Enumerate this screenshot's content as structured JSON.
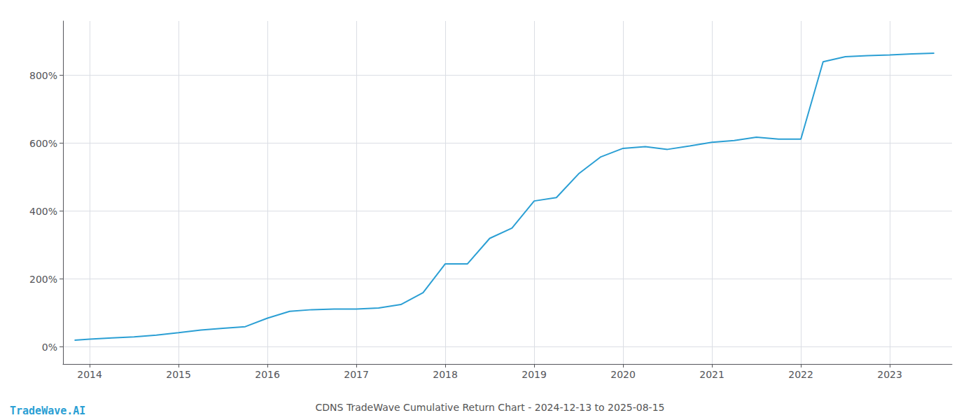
{
  "chart_data": {
    "type": "line",
    "title": "CDNS TradeWave Cumulative Return Chart - 2024-12-13 to 2025-08-15",
    "annotations": [
      {
        "text": "TradeWave.AI",
        "color": "#2b9fd4"
      }
    ],
    "x": [
      2013.83,
      2014.0,
      2014.25,
      2014.5,
      2014.75,
      2015.0,
      2015.25,
      2015.5,
      2015.75,
      2016.0,
      2016.25,
      2016.5,
      2016.75,
      2017.0,
      2017.25,
      2017.5,
      2017.75,
      2018.0,
      2018.25,
      2018.5,
      2018.75,
      2019.0,
      2019.25,
      2019.5,
      2019.75,
      2020.0,
      2020.25,
      2020.5,
      2020.75,
      2021.0,
      2021.25,
      2021.5,
      2021.75,
      2022.0,
      2022.25,
      2022.5,
      2022.75,
      2023.0,
      2023.25,
      2023.5
    ],
    "values": [
      20,
      23,
      27,
      30,
      35,
      42,
      50,
      55,
      60,
      85,
      105,
      110,
      112,
      112,
      115,
      125,
      160,
      245,
      245,
      320,
      350,
      430,
      440,
      510,
      560,
      585,
      590,
      582,
      592,
      603,
      608,
      618,
      612,
      612,
      840,
      855,
      858,
      860,
      863,
      865
    ],
    "color": "#2b9fd4",
    "xlim": [
      2013.7,
      2023.7
    ],
    "xticks": [
      2014,
      2015,
      2016,
      2017,
      2018,
      2019,
      2020,
      2021,
      2022,
      2023
    ],
    "ylim": [
      -50,
      960
    ],
    "yticks": [
      {
        "value": 0,
        "label": "0%"
      },
      {
        "value": 200,
        "label": "200%"
      },
      {
        "value": 400,
        "label": "400%"
      },
      {
        "value": 600,
        "label": "600%"
      },
      {
        "value": 800,
        "label": "800%"
      }
    ],
    "grid": true
  }
}
